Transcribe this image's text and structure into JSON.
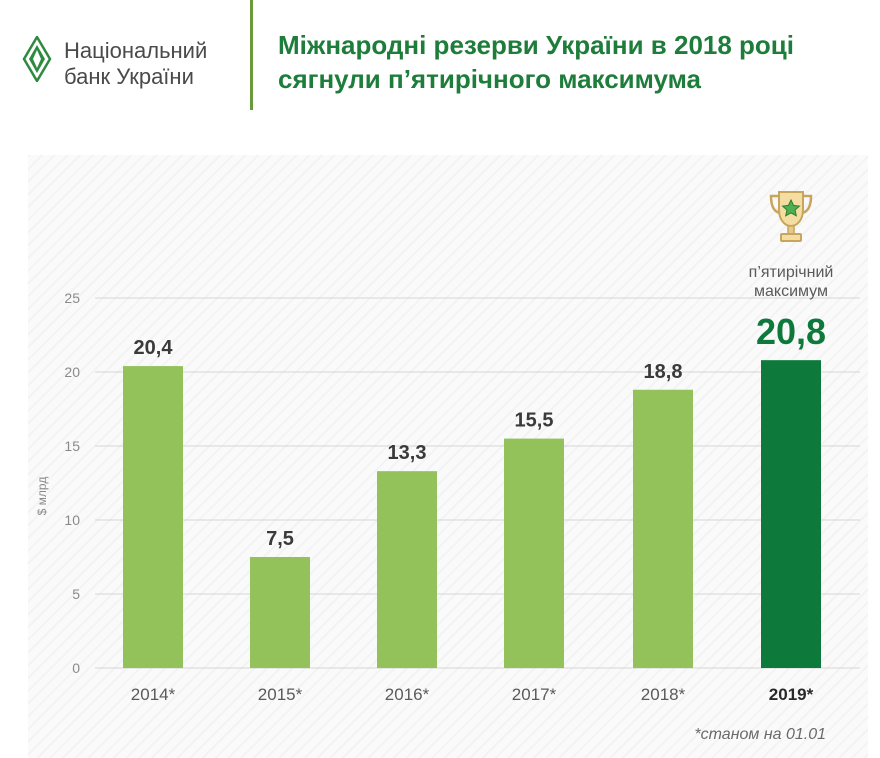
{
  "header": {
    "bank_name_line1": "Національний",
    "bank_name_line2": "банк України",
    "headline_line1": "Міжнародні резерви України в 2018 році",
    "headline_line2": "сягнули п’ятирічного максимума"
  },
  "chart_data": {
    "type": "bar",
    "categories": [
      "2014*",
      "2015*",
      "2016*",
      "2017*",
      "2018*",
      "2019*"
    ],
    "values": [
      20.4,
      7.5,
      13.3,
      15.5,
      18.8,
      20.8
    ],
    "value_labels": [
      "20,4",
      "7,5",
      "13,3",
      "15,5",
      "18,8",
      "20,8"
    ],
    "highlight_index": 5,
    "ylabel": "$ млрд",
    "ylim": [
      0,
      25
    ],
    "yticks": [
      0,
      5,
      10,
      15,
      20,
      25
    ],
    "grid": true,
    "annotation_line1": "п’ятирічний",
    "annotation_line2": "максимум",
    "colors": {
      "bar": "#93c25a",
      "highlight": "#0d7a3b",
      "grid": "#d6d6d6"
    },
    "trophy_icon": "trophy-icon"
  },
  "footnote": "*станом на 01.01"
}
